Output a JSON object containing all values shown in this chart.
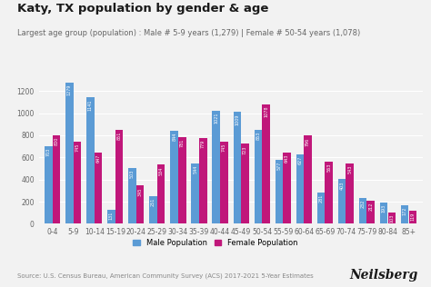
{
  "title": "Katy, TX population by gender & age",
  "subtitle": "Largest age group (population) : Male # 5-9 years (1,279) | Female # 50-54 years (1,078)",
  "categories": [
    "0-4",
    "5-9",
    "10-14",
    "15-19",
    "20-24",
    "25-29",
    "30-34",
    "35-39",
    "40-44",
    "45-49",
    "50-54",
    "55-59",
    "60-64",
    "65-69",
    "70-74",
    "75-79",
    "80-84",
    "85+"
  ],
  "male": [
    703,
    1279,
    1141,
    131,
    503,
    251,
    844,
    544,
    1021,
    1009,
    853,
    577,
    627,
    281,
    403,
    232,
    193,
    172
  ],
  "female": [
    800,
    745,
    647,
    851,
    345,
    534,
    781,
    779,
    745,
    723,
    1078,
    643,
    796,
    563,
    543,
    212,
    103,
    119
  ],
  "male_color": "#5B9BD5",
  "female_color": "#C0177A",
  "bg_color": "#F2F2F2",
  "ylabel_max": 1400,
  "yticks": [
    0,
    200,
    400,
    600,
    800,
    1000,
    1200
  ],
  "source_text": "Source: U.S. Census Bureau, American Community Survey (ACS) 2017-2021 5-Year Estimates",
  "brand": "Neilsberg",
  "legend_male": "Male Population",
  "legend_female": "Female Population",
  "title_fontsize": 9.5,
  "subtitle_fontsize": 6.0,
  "bar_label_fontsize": 3.5,
  "axis_label_fontsize": 5.5,
  "legend_fontsize": 6.0,
  "source_fontsize": 5.0,
  "brand_fontsize": 10.0
}
